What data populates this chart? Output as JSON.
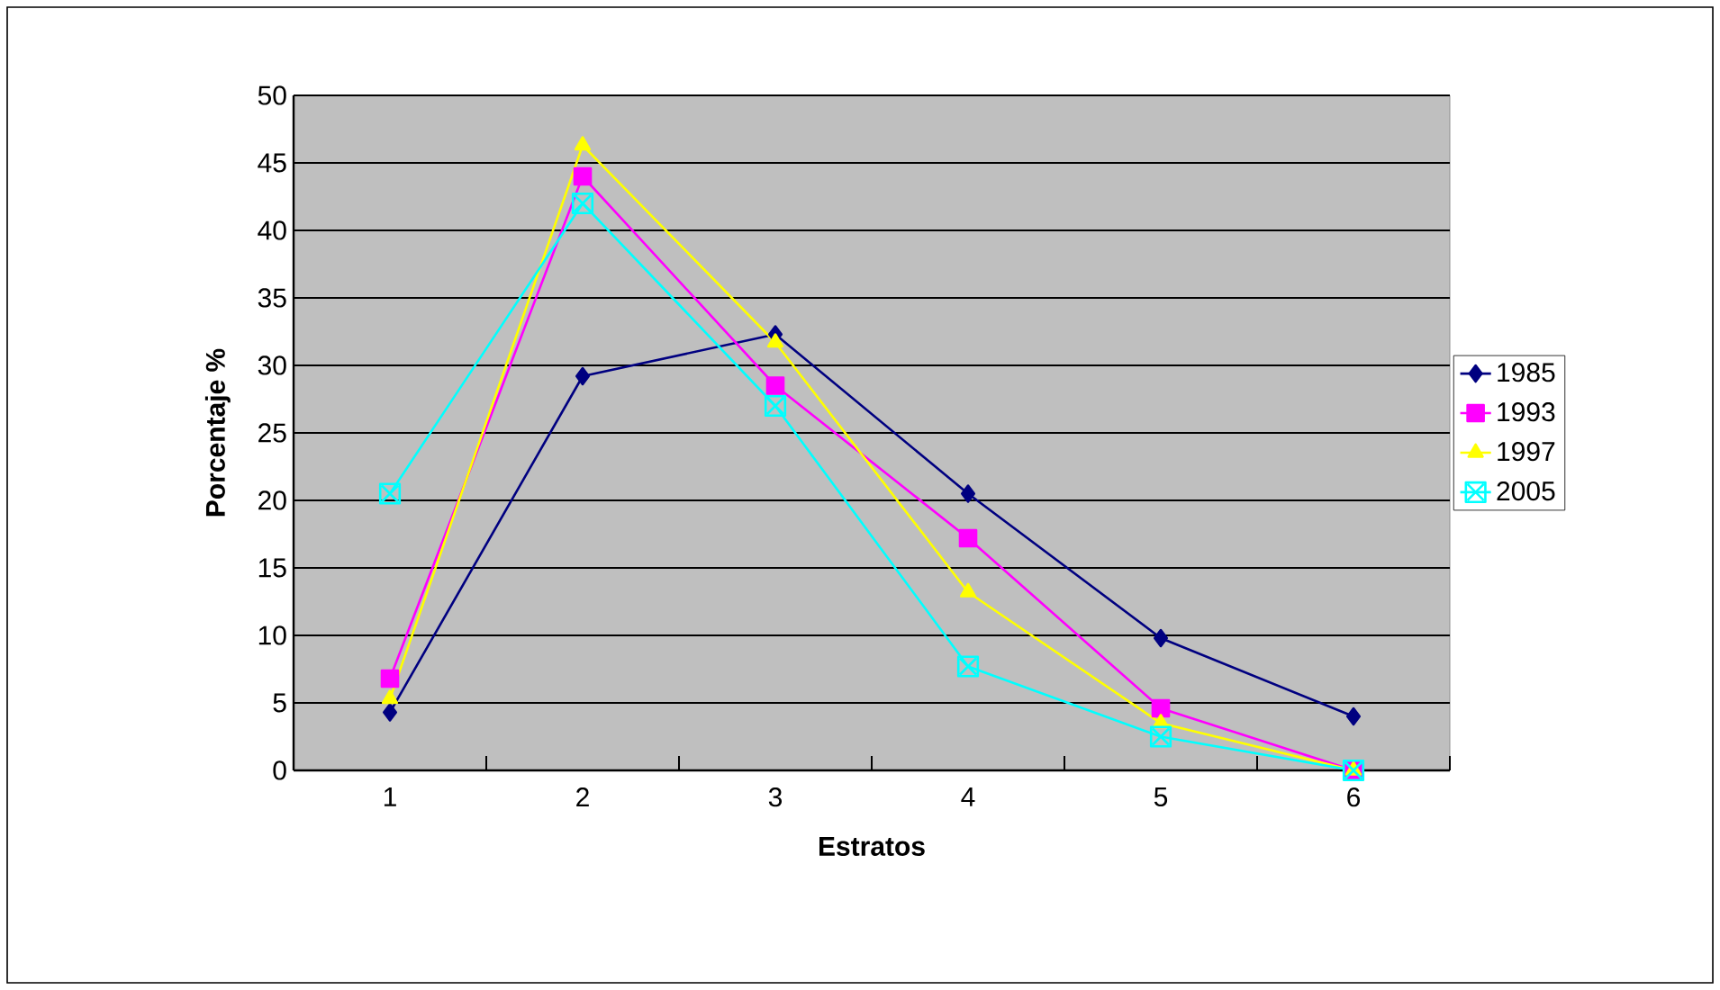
{
  "chart_data": {
    "type": "line",
    "xlabel": "Estratos",
    "ylabel": "Porcentaje %",
    "categories": [
      "1",
      "2",
      "3",
      "4",
      "5",
      "6"
    ],
    "series": [
      {
        "name": "1985",
        "color": "#000080",
        "marker": "diamond",
        "values": [
          4.3,
          29.2,
          32.3,
          20.5,
          9.8,
          4.0
        ]
      },
      {
        "name": "1993",
        "color": "#ff00ff",
        "marker": "square",
        "values": [
          6.8,
          44.0,
          28.5,
          17.2,
          4.6,
          0
        ]
      },
      {
        "name": "1997",
        "color": "#ffff00",
        "marker": "triangle",
        "values": [
          5.3,
          46.3,
          31.7,
          13.2,
          3.5,
          0
        ]
      },
      {
        "name": "2005",
        "color": "#00ffff",
        "marker": "cross",
        "values": [
          20.5,
          42.0,
          27.0,
          7.7,
          2.5,
          0
        ]
      }
    ],
    "ylim": [
      0,
      50
    ],
    "yticks": [
      0,
      5,
      10,
      15,
      20,
      25,
      30,
      35,
      40,
      45,
      50
    ],
    "grid": "y",
    "legend": "right",
    "line_style": "solid"
  }
}
